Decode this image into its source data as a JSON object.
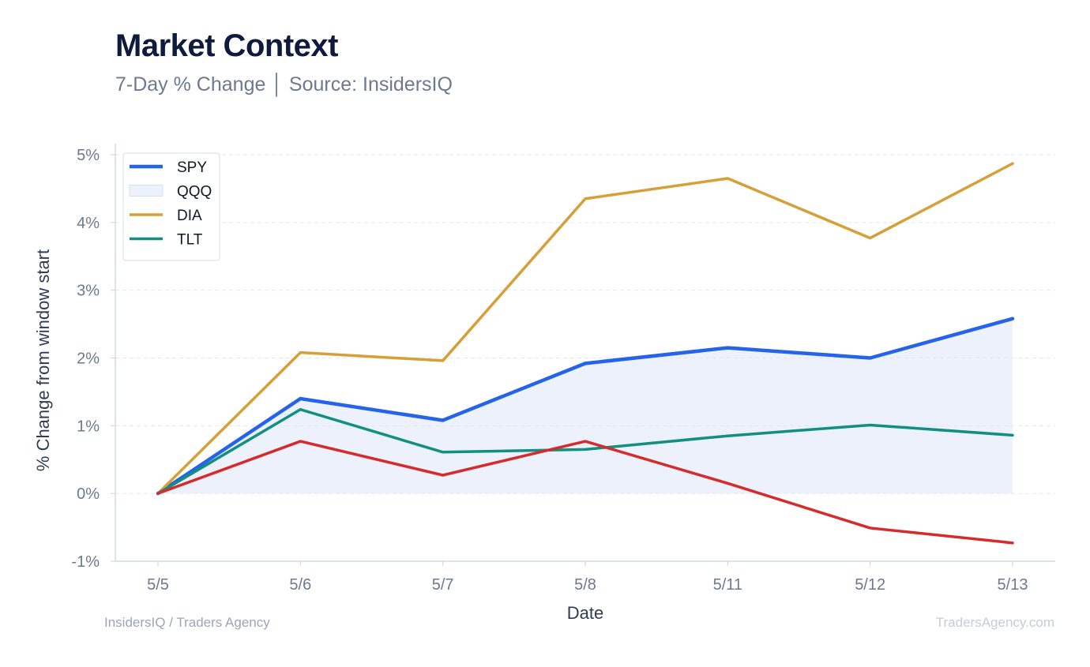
{
  "header": {
    "title": "Market Context",
    "subtitle": "7-Day % Change │ Source: InsidersIQ"
  },
  "footer": {
    "left": "InsidersIQ / Traders Agency",
    "right": "TradersAgency.com"
  },
  "chart_data": {
    "type": "line",
    "xlabel": "Date",
    "ylabel": "% Change from window start",
    "categories": [
      "5/5",
      "5/6",
      "5/7",
      "5/8",
      "5/11",
      "5/12",
      "5/13"
    ],
    "ylim": [
      -1,
      5
    ],
    "yticks": [
      -1,
      0,
      1,
      2,
      3,
      4,
      5
    ],
    "ytick_labels": [
      "-1%",
      "0%",
      "1%",
      "2%",
      "3%",
      "4%",
      "5%"
    ],
    "grid": true,
    "legend_position": "top-left",
    "series": [
      {
        "name": "SPY",
        "style": "line",
        "color": "#2563eb",
        "values": [
          0,
          1.4,
          1.08,
          1.92,
          2.15,
          2.0,
          2.58
        ]
      },
      {
        "name": "QQQ",
        "style": "area",
        "color": "#dde6f9",
        "values": [
          0,
          1.4,
          1.08,
          1.92,
          2.15,
          2.0,
          2.58
        ]
      },
      {
        "name": "DIA",
        "style": "line",
        "color": "#d4a037",
        "values": [
          0,
          2.08,
          1.96,
          4.35,
          4.65,
          3.77,
          4.87
        ]
      },
      {
        "name": "TLT",
        "style": "line",
        "color": "#138f82",
        "values": [
          0,
          1.24,
          0.61,
          0.65,
          0.85,
          1.01,
          0.86
        ]
      },
      {
        "name": "",
        "style": "line",
        "color": "#d62b2b",
        "values": [
          0,
          0.77,
          0.27,
          0.77,
          0.15,
          -0.51,
          -0.73
        ]
      }
    ]
  }
}
